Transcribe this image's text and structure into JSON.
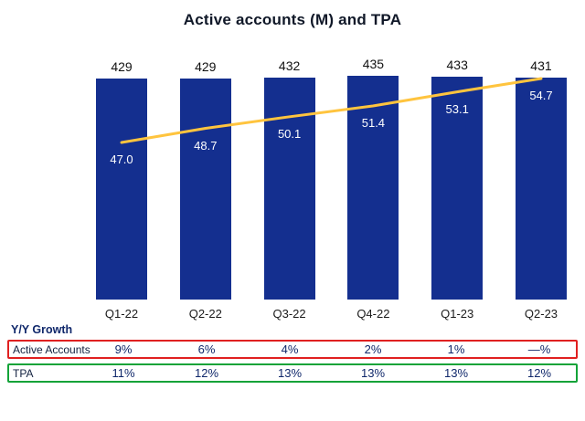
{
  "title": "Active accounts (M) and TPA",
  "chart_data": {
    "type": "bar",
    "subtype": "bar-with-line-overlay",
    "title": "Active accounts (M) and TPA",
    "categories": [
      "Q1-22",
      "Q2-22",
      "Q3-22",
      "Q4-22",
      "Q1-23",
      "Q2-23"
    ],
    "series": [
      {
        "name": "Active accounts (M)",
        "kind": "bar",
        "values": [
          429,
          429,
          432,
          435,
          433,
          431
        ],
        "color": "#142F8F"
      },
      {
        "name": "TPA",
        "kind": "line",
        "values": [
          47.0,
          48.7,
          50.1,
          51.4,
          53.1,
          54.7
        ],
        "value_labels": [
          "47.0",
          "48.7",
          "50.1",
          "51.4",
          "53.1",
          "54.7"
        ],
        "color": "#FFC43E"
      }
    ],
    "bar_axis_range": [
      0,
      435
    ],
    "legend": "none",
    "grid": false
  },
  "growth": {
    "label": "Y/Y Growth",
    "rows": [
      {
        "label": "Active Accounts",
        "values": [
          "9%",
          "6%",
          "4%",
          "2%",
          "1%",
          "—%"
        ],
        "border_color": "#E02020"
      },
      {
        "label": "TPA",
        "values": [
          "11%",
          "12%",
          "13%",
          "13%",
          "13%",
          "12%"
        ],
        "border_color": "#12A338"
      }
    ]
  },
  "colors": {
    "bar": "#142F8F",
    "line": "#FFC43E",
    "bar_label_text": "#111111",
    "tpa_label_text": "#FFFFFF",
    "navy_text": "#10286B",
    "row_red_border": "#E02020",
    "row_green_border": "#12A338",
    "background": "#FFFFFF"
  }
}
